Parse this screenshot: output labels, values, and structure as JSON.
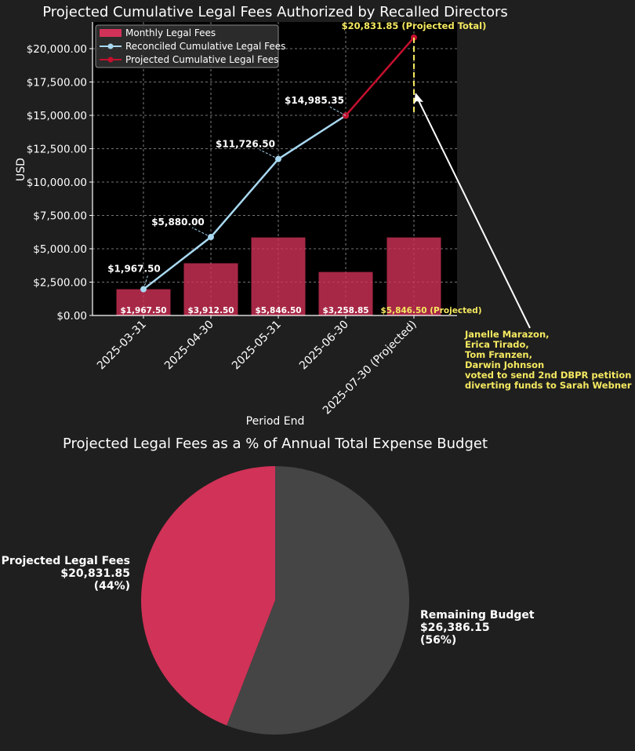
{
  "chart_data": [
    {
      "type": "bar",
      "title": "Projected Cumulative Legal Fees Authorized by Recalled Directors",
      "xlabel": "Period End",
      "ylabel": "USD",
      "ylim": [
        0,
        22000
      ],
      "yticks": [
        0,
        2500,
        5000,
        7500,
        10000,
        12500,
        15000,
        17500,
        20000
      ],
      "ytick_labels": [
        "$0.00",
        "$2,500.00",
        "$5,000.00",
        "$7,500.00",
        "$10,000.00",
        "$12,500.00",
        "$15,000.00",
        "$17,500.00",
        "$20,000.00"
      ],
      "categories": [
        "2025-03-31",
        "2025-04-30",
        "2025-05-31",
        "2025-06-30",
        "2025-07-30 (Projected)"
      ],
      "grid": true,
      "legend_position": "top-left",
      "legend": [
        "Monthly Legal Fees",
        "Reconciled Cumulative Legal Fees",
        "Projected Cumulative Legal Fees"
      ],
      "series": [
        {
          "name": "Monthly Legal Fees",
          "kind": "bar",
          "color": "#d13257",
          "values": [
            1967.5,
            3912.5,
            5846.5,
            3258.85,
            5846.5
          ],
          "labels": [
            "$1,967.50",
            "$3,912.50",
            "$5,846.50",
            "$3,258.85",
            "$5,846.50 (Projected)"
          ]
        },
        {
          "name": "Reconciled Cumulative Legal Fees",
          "kind": "line",
          "color": "#a8d8f0",
          "values": [
            1967.5,
            5880.0,
            11726.5,
            14985.35,
            null
          ],
          "labels": [
            "$1,967.50",
            "$5,880.00",
            "$11,726.50",
            "$14,985.35",
            ""
          ]
        },
        {
          "name": "Projected Cumulative Legal Fees",
          "kind": "line",
          "color": "#c4102e",
          "values": [
            null,
            null,
            null,
            14985.35,
            20831.85
          ],
          "labels": [
            "",
            "",
            "",
            "",
            "$20,831.85 (Projected Total)"
          ]
        }
      ],
      "annotation": {
        "lines": [
          "Janelle Marazon,",
          "Erica Tirado,",
          "Tom Franzen,",
          "Darwin Johnson",
          "voted to send 2nd DBPR petition",
          "diverting funds to Sarah Webner"
        ],
        "color": "#f5e960"
      }
    },
    {
      "type": "pie",
      "title": "Projected Legal Fees as a % of Annual Total Expense Budget",
      "slices": [
        {
          "name": "Projected Legal Fees",
          "value": 20831.85,
          "value_label": "$20,831.85",
          "pct_label": "(44%)",
          "color": "#d13257"
        },
        {
          "name": "Remaining Budget",
          "value": 26386.15,
          "value_label": "$26,386.15",
          "pct_label": "(56%)",
          "color": "#454545"
        }
      ]
    }
  ],
  "colors": {
    "background": "#1f1f1f",
    "plot_bg": "#000000",
    "text": "#ffffff",
    "highlight": "#f5e960",
    "grid": "#9a9a9a"
  }
}
